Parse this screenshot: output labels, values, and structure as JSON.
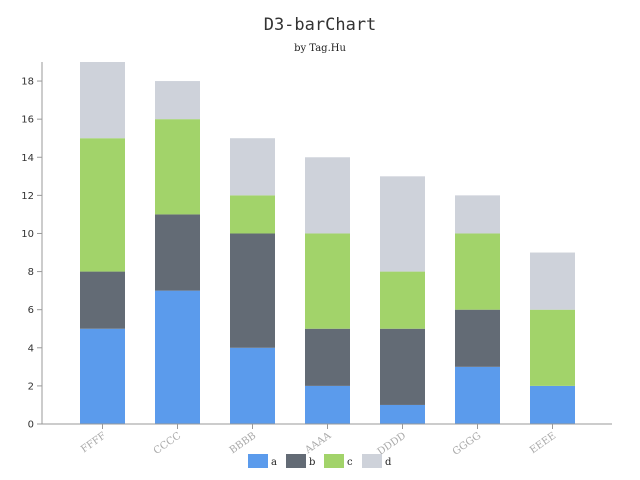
{
  "chart_data": {
    "type": "bar",
    "stacked": true,
    "title": "D3-barChart",
    "subtitle": "by Tag.Hu",
    "categories": [
      "FFFF",
      "CCCC",
      "BBBB",
      "AAAA",
      "DDDD",
      "GGGG",
      "EEEE"
    ],
    "series": [
      {
        "name": "a",
        "color": "#5b9bec",
        "values": [
          5,
          7,
          4,
          2,
          1,
          3,
          2
        ]
      },
      {
        "name": "b",
        "color": "#636b75",
        "values": [
          3,
          4,
          6,
          3,
          4,
          3,
          0
        ]
      },
      {
        "name": "c",
        "color": "#a2d36a",
        "values": [
          7,
          5,
          2,
          5,
          3,
          4,
          4
        ]
      },
      {
        "name": "d",
        "color": "#ced2da",
        "values": [
          4,
          2,
          3,
          4,
          5,
          2,
          3
        ]
      }
    ],
    "ylim": [
      0,
      19
    ],
    "yticks": [
      0,
      2,
      4,
      6,
      8,
      10,
      12,
      14,
      16,
      18
    ],
    "grid": false,
    "legend": "bottom-center",
    "xlabel": "",
    "ylabel": ""
  }
}
